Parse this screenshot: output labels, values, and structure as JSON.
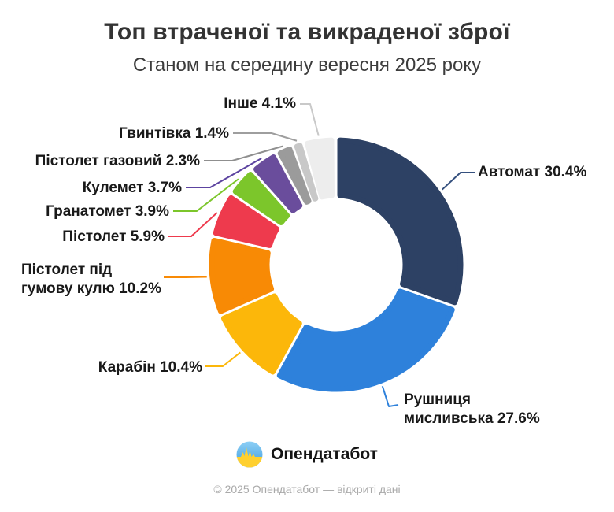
{
  "header": {
    "title": "Топ втраченої та викраденої зброї",
    "subtitle": "Станом на середину вересня 2025 року"
  },
  "chart_data": {
    "type": "pie",
    "subtype": "donut",
    "title": "Топ втраченої та викраденої зброї",
    "subtitle": "Станом на середину вересня 2025 року",
    "unit": "%",
    "start_angle_deg": 0,
    "direction": "clockwise",
    "legend_position": "callout-labels",
    "segments": [
      {
        "id": "avtomat",
        "label": "Автомат",
        "value": 30.4,
        "label_text": "Автомат 30.4%",
        "color": "#2D4164",
        "leader_color": "#35507E"
      },
      {
        "id": "rushnytsia",
        "label": "Рушниця мисливська",
        "value": 27.6,
        "label_text": "Рушниця мисливська 27.6%",
        "color": "#2E81DB",
        "leader_color": "#2E81DB"
      },
      {
        "id": "karabin",
        "label": "Карабін",
        "value": 10.4,
        "label_text": "Карабін 10.4%",
        "color": "#FCB70A",
        "leader_color": "#FCB70A"
      },
      {
        "id": "pid-humovu-kulyu",
        "label": "Пістолет під гумову кулю",
        "value": 10.2,
        "label_text": "Пістолет під гумову кулю 10.2%",
        "color": "#F88A05",
        "leader_color": "#F88A05"
      },
      {
        "id": "pistolet",
        "label": "Пістолет",
        "value": 5.9,
        "label_text": "Пістолет 5.9%",
        "color": "#EE3A4D",
        "leader_color": "#EE3A4D"
      },
      {
        "id": "hranatomet",
        "label": "Гранатомет",
        "value": 3.9,
        "label_text": "Гранатомет 3.9%",
        "color": "#7CC62B",
        "leader_color": "#7CC62B"
      },
      {
        "id": "kulemet",
        "label": "Кулемет",
        "value": 3.7,
        "label_text": "Кулемет 3.7%",
        "color": "#6A4D9C",
        "leader_color": "#5C43A0"
      },
      {
        "id": "pistolet-hazovyi",
        "label": "Пістолет газовий",
        "value": 2.3,
        "label_text": "Пістолет газовий 2.3%",
        "color": "#9B9B9B",
        "leader_color": "#8F8F8F"
      },
      {
        "id": "hvyntivka",
        "label": "Гвинтівка",
        "value": 1.4,
        "label_text": "Гвинтівка 1.4%",
        "color": "#C8C8C8",
        "leader_color": "#9E9E9E"
      },
      {
        "id": "inshe",
        "label": "Інше",
        "value": 4.1,
        "label_text": "Інше 4.1%",
        "color": "#EDEDED",
        "leader_color": "#C9C9C9"
      }
    ]
  },
  "branding": {
    "logo_icon": "opendatabot-logo",
    "logo_text": "Опендатабот",
    "flag_blue_top": "#8ED0F6",
    "flag_blue_bottom": "#3E9CDE",
    "flag_yellow": "#FFD02F"
  },
  "footer": {
    "copyright": "© 2025 Опендатабот — відкриті дані"
  }
}
